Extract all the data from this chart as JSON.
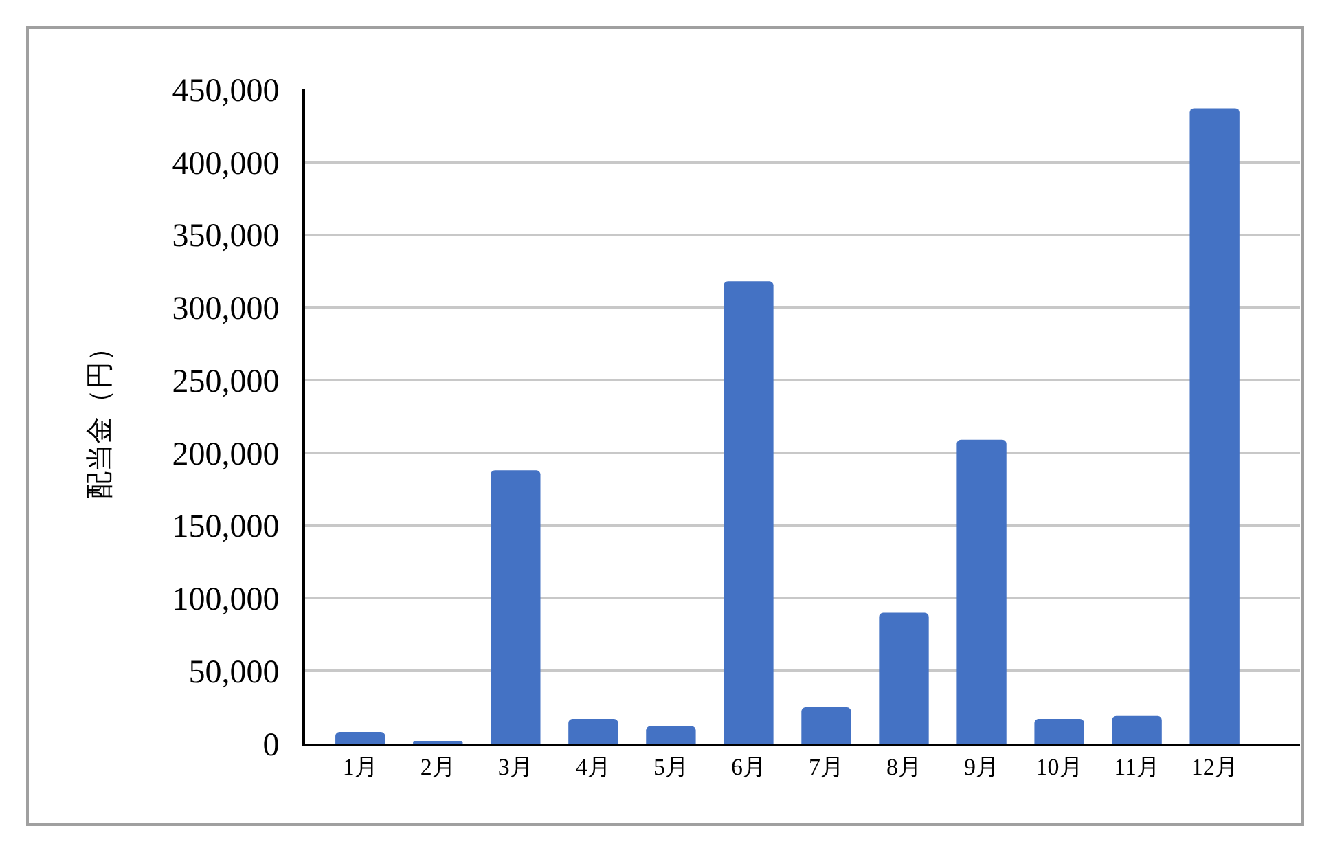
{
  "chart_data": {
    "type": "bar",
    "ylabel": "配当金（円）",
    "categories": [
      "1月",
      "2月",
      "3月",
      "4月",
      "5月",
      "6月",
      "7月",
      "8月",
      "9月",
      "10月",
      "11月",
      "12月"
    ],
    "values": [
      8000,
      1000,
      188000,
      17000,
      12000,
      318000,
      25000,
      90000,
      209000,
      17000,
      19000,
      437000
    ],
    "color": "#4472c4",
    "ylim": [
      0,
      450000
    ],
    "yticks": [
      0,
      {
        "value": 50000,
        "label": "50,000"
      },
      {
        "value": 100000,
        "label": "100,000"
      },
      {
        "value": 150000,
        "label": "150,000"
      },
      {
        "value": 200000,
        "label": "200,000"
      },
      {
        "value": 250000,
        "label": "250,000"
      },
      {
        "value": 300000,
        "label": "300,000"
      },
      {
        "value": 350000,
        "label": "350,000"
      },
      {
        "value": 400000,
        "label": "400,000"
      },
      {
        "value": 450000,
        "label": "450,000"
      }
    ],
    "grid": "y"
  }
}
